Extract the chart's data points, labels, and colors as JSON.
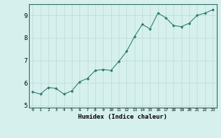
{
  "x": [
    0,
    1,
    2,
    3,
    4,
    5,
    6,
    7,
    8,
    9,
    10,
    11,
    12,
    13,
    14,
    15,
    16,
    17,
    18,
    19,
    20,
    21,
    22,
    23
  ],
  "y": [
    5.6,
    5.5,
    5.8,
    5.75,
    5.5,
    5.65,
    6.05,
    6.2,
    6.55,
    6.6,
    6.55,
    6.95,
    7.4,
    8.05,
    8.6,
    8.4,
    9.1,
    8.9,
    8.55,
    8.5,
    8.65,
    9.0,
    9.1,
    9.25
  ],
  "xlabel": "Humidex (Indice chaleur)",
  "ylim": [
    4.9,
    9.5
  ],
  "xlim": [
    -0.5,
    23.5
  ],
  "line_color": "#2e7d6e",
  "marker": "D",
  "marker_size": 1.8,
  "bg_color": "#d6f0ee",
  "grid_color": "#b8dad6",
  "axis_color": "#2e6b5e",
  "yticks": [
    5,
    6,
    7,
    8,
    9
  ],
  "xticks": [
    0,
    1,
    2,
    3,
    4,
    5,
    6,
    7,
    8,
    9,
    10,
    11,
    12,
    13,
    14,
    15,
    16,
    17,
    18,
    19,
    20,
    21,
    22,
    23
  ]
}
